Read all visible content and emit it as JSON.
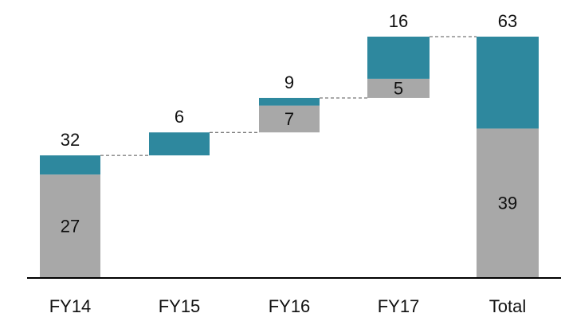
{
  "chart_data": {
    "type": "bar",
    "subtype": "waterfall",
    "categories": [
      "FY14",
      "FY15",
      "FY16",
      "FY17",
      "Total"
    ],
    "series": [
      {
        "values": [
          27,
          0,
          7,
          5,
          39
        ]
      },
      {
        "values": [
          5,
          6,
          2,
          11,
          24
        ]
      }
    ],
    "totals": [
      32,
      6,
      9,
      16,
      63
    ],
    "bases": [
      0,
      32,
      38,
      47,
      0
    ],
    "ylim": [
      0,
      63
    ],
    "title": "",
    "xlabel": "",
    "ylabel": "",
    "grid": false,
    "legend": "none",
    "colors": {
      "gray": "#a8a8a8",
      "teal": "#2e889e"
    }
  }
}
